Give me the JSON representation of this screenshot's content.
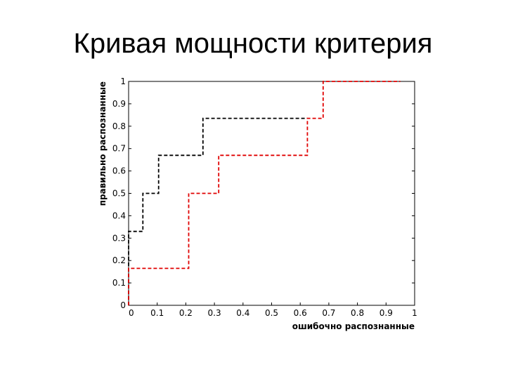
{
  "title": "Кривая мощности критерия",
  "chart_data": {
    "type": "line",
    "xlabel": "ошибочно распознанные",
    "ylabel": "правильно распознанные",
    "xlim": [
      0,
      1
    ],
    "ylim": [
      0,
      1
    ],
    "xticks": [
      "0",
      "0.1",
      "0.2",
      "0.3",
      "0.4",
      "0.5",
      "0.6",
      "0.7",
      "0.8",
      "0.9",
      "1"
    ],
    "yticks": [
      "0",
      "0.1",
      "0.2",
      "0.3",
      "0.4",
      "0.5",
      "0.6",
      "0.7",
      "0.8",
      "0.9",
      "1"
    ],
    "grid": false,
    "series": [
      {
        "color": "#000000",
        "style": "dashed-step",
        "x": [
          0,
          0,
          0.05,
          0.05,
          0.105,
          0.105,
          0.26,
          0.26,
          0.625,
          0.625
        ],
        "y": [
          0,
          0.33,
          0.33,
          0.5,
          0.5,
          0.67,
          0.67,
          0.835,
          0.835,
          0.835
        ]
      },
      {
        "color": "#e00000",
        "style": "dashed-step",
        "x": [
          0,
          0,
          0.21,
          0.21,
          0.315,
          0.315,
          0.625,
          0.625,
          0.68,
          0.68,
          0.95
        ],
        "y": [
          0,
          0.165,
          0.165,
          0.5,
          0.5,
          0.67,
          0.67,
          0.835,
          0.835,
          1,
          1
        ]
      }
    ]
  }
}
